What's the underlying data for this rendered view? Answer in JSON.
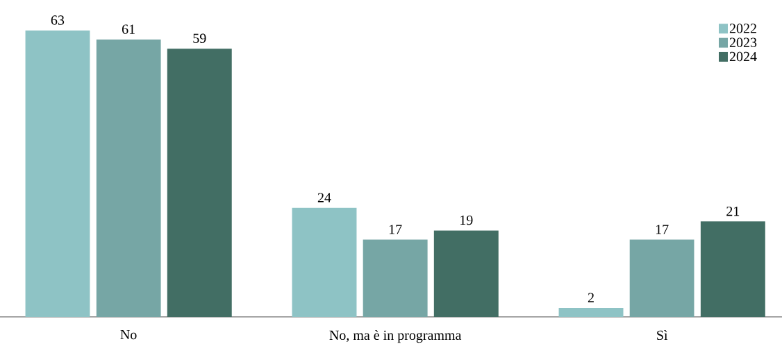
{
  "chart_data": {
    "type": "bar",
    "categories": [
      "No",
      "No, ma è in programma",
      "Sì"
    ],
    "series": [
      {
        "name": "2022",
        "color": "#8ec3c5",
        "values": [
          63,
          24,
          2
        ]
      },
      {
        "name": "2023",
        "color": "#76a6a5",
        "values": [
          61,
          17,
          17
        ]
      },
      {
        "name": "2024",
        "color": "#426e64",
        "values": [
          59,
          19,
          21
        ]
      }
    ],
    "data_labels": true,
    "legend": "top right"
  }
}
